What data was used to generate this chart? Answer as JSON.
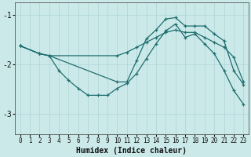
{
  "xlabel": "Humidex (Indice chaleur)",
  "xlim": [
    -0.5,
    23.5
  ],
  "ylim": [
    -3.4,
    -0.75
  ],
  "yticks": [
    -3,
    -2,
    -1
  ],
  "xticks": [
    0,
    1,
    2,
    3,
    4,
    5,
    6,
    7,
    8,
    9,
    10,
    11,
    12,
    13,
    14,
    15,
    16,
    17,
    18,
    19,
    20,
    21,
    22,
    23
  ],
  "bg_color": "#cce9ea",
  "grid_color": "#add4d6",
  "line_color": "#1e6e6e",
  "series": [
    {
      "x": [
        0,
        2,
        3,
        10,
        11,
        12,
        13,
        14,
        15,
        16,
        17,
        18,
        19,
        20,
        21,
        22,
        23
      ],
      "y": [
        -1.62,
        -1.78,
        -1.82,
        -1.82,
        -1.75,
        -1.65,
        -1.55,
        -1.45,
        -1.35,
        -1.3,
        -1.35,
        -1.35,
        -1.45,
        -1.55,
        -1.65,
        -1.85,
        -2.35
      ]
    },
    {
      "x": [
        0,
        2,
        3,
        10,
        11,
        12,
        13,
        14,
        15,
        16,
        17,
        18,
        19,
        20,
        21,
        22,
        23
      ],
      "y": [
        -1.62,
        -1.78,
        -1.82,
        -2.35,
        -2.35,
        -1.92,
        -1.48,
        -1.3,
        -1.08,
        -1.05,
        -1.22,
        -1.22,
        -1.22,
        -1.38,
        -1.52,
        -2.12,
        -2.4
      ]
    },
    {
      "x": [
        0,
        2,
        3,
        4,
        5,
        6,
        7,
        8,
        9,
        10,
        11,
        12,
        13,
        14,
        15,
        16,
        17,
        18,
        19,
        20,
        21,
        22,
        23
      ],
      "y": [
        -1.62,
        -1.78,
        -1.82,
        -2.12,
        -2.32,
        -2.48,
        -2.62,
        -2.62,
        -2.62,
        -2.48,
        -2.38,
        -2.18,
        -1.88,
        -1.58,
        -1.32,
        -1.18,
        -1.45,
        -1.38,
        -1.58,
        -1.78,
        -2.12,
        -2.52,
        -2.8
      ]
    }
  ]
}
